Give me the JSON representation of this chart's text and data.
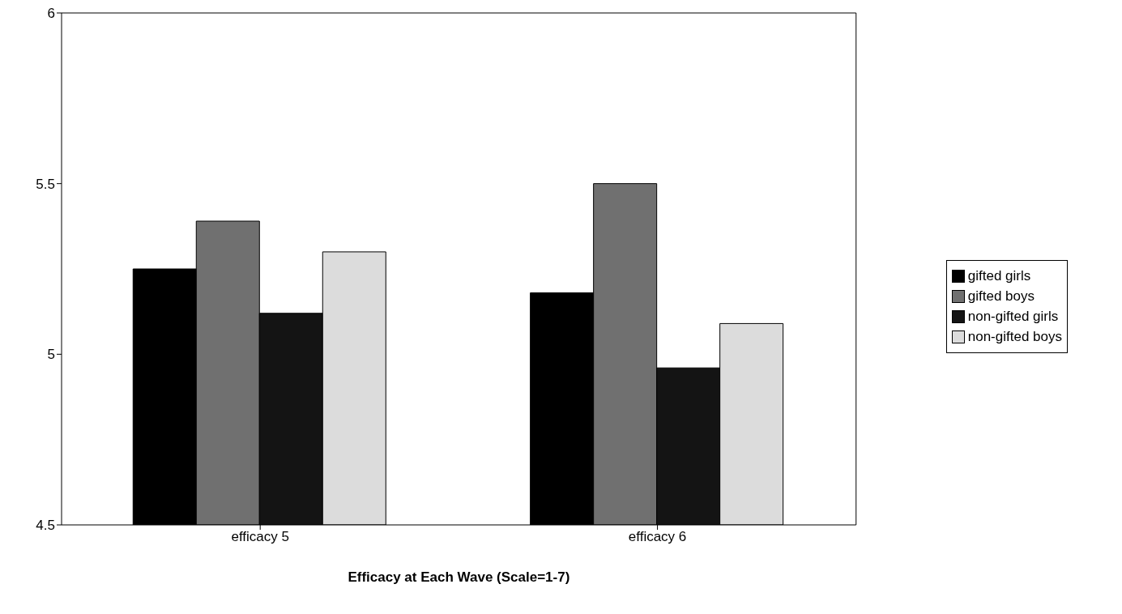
{
  "chart_data": {
    "type": "bar",
    "xlabel": "Efficacy at Each Wave (Scale=1-7)",
    "categories": [
      "efficacy 5",
      "efficacy 6"
    ],
    "series": [
      {
        "name": "gifted girls",
        "color": "#000000",
        "values": [
          5.25,
          5.18
        ]
      },
      {
        "name": "gifted boys",
        "color": "#707070",
        "values": [
          5.39,
          5.5
        ]
      },
      {
        "name": "non-gifted girls",
        "color": "#141414",
        "values": [
          5.12,
          4.96
        ]
      },
      {
        "name": "non-gifted boys",
        "color": "#dcdcdc",
        "values": [
          5.3,
          5.09
        ]
      }
    ],
    "ylim": [
      4.5,
      6
    ],
    "yticks": [
      4.5,
      5,
      5.5,
      6
    ],
    "legend": "right"
  }
}
